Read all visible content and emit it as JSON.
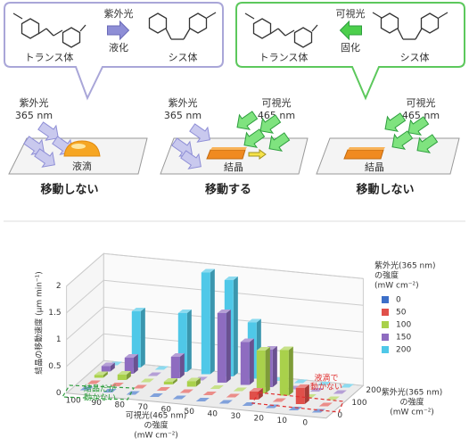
{
  "diagram": {
    "left_box": {
      "trans": "トランス体",
      "light": "紫外光",
      "process": "液化",
      "cis": "シス体"
    },
    "right_box": {
      "trans": "トランス体",
      "light": "可視光",
      "process": "固化",
      "cis": "シス体"
    },
    "panels": [
      {
        "lights": [
          {
            "name": "紫外光",
            "wavelength": "365 nm"
          }
        ],
        "object": "液滴",
        "result": "移動しない"
      },
      {
        "lights": [
          {
            "name": "紫外光",
            "wavelength": "365 nm"
          },
          {
            "name": "可視光",
            "wavelength": "465 nm"
          }
        ],
        "object": "結晶",
        "result": "移動する"
      },
      {
        "lights": [
          {
            "name": "可視光",
            "wavelength": "465 nm"
          }
        ],
        "object": "結晶",
        "result": "移動しない"
      }
    ]
  },
  "chart_data": {
    "type": "bar3d",
    "y_label": "結晶の移動速度 (μm min⁻¹)",
    "x_label": [
      "可視光(465 nm)",
      "の強度",
      "(mW cm⁻²)"
    ],
    "z_label": [
      "紫外光(365 nm)",
      "の強度",
      "(mW cm⁻²)"
    ],
    "legend_title": [
      "紫外光(365 nm)",
      "の強度",
      "(mW cm⁻²)"
    ],
    "categories": [
      "100",
      "90",
      "80",
      "70",
      "60",
      "50",
      "40",
      "30",
      "20",
      "10",
      "0"
    ],
    "ylim": [
      0,
      2
    ],
    "yticks": [
      0,
      0.5,
      1,
      1.5,
      2
    ],
    "zlim": [
      0,
      200
    ],
    "zticks": [
      0,
      100,
      200
    ],
    "grid": true,
    "series": [
      {
        "name": "0",
        "color": "#3d6fc8",
        "values": [
          0,
          0,
          0,
          0,
          0,
          0,
          0,
          0,
          0,
          0,
          0
        ]
      },
      {
        "name": "50",
        "color": "#e0504a",
        "values": [
          0,
          0,
          0,
          0,
          0,
          0,
          0,
          0.15,
          0,
          0.3,
          0
        ]
      },
      {
        "name": "100",
        "color": "#a9d14b",
        "values": [
          0.05,
          0.1,
          0,
          0.05,
          0.1,
          0,
          0,
          0.8,
          0.85,
          0,
          0
        ]
      },
      {
        "name": "150",
        "color": "#8e6cc0",
        "values": [
          0.1,
          0.3,
          0,
          0.4,
          0,
          1.3,
          0.8,
          0.7,
          0,
          0,
          0
        ]
      },
      {
        "name": "200",
        "color": "#4fc8e8",
        "values": [
          0,
          1.05,
          0,
          1.1,
          1.9,
          1.8,
          1.05,
          0,
          0,
          0,
          0
        ]
      }
    ],
    "annotations": [
      {
        "text": [
          "結晶だが",
          "動かない"
        ],
        "color": "#2e9e3e"
      },
      {
        "text": [
          "液滴で",
          "動かない"
        ],
        "color": "#e03030"
      }
    ]
  }
}
